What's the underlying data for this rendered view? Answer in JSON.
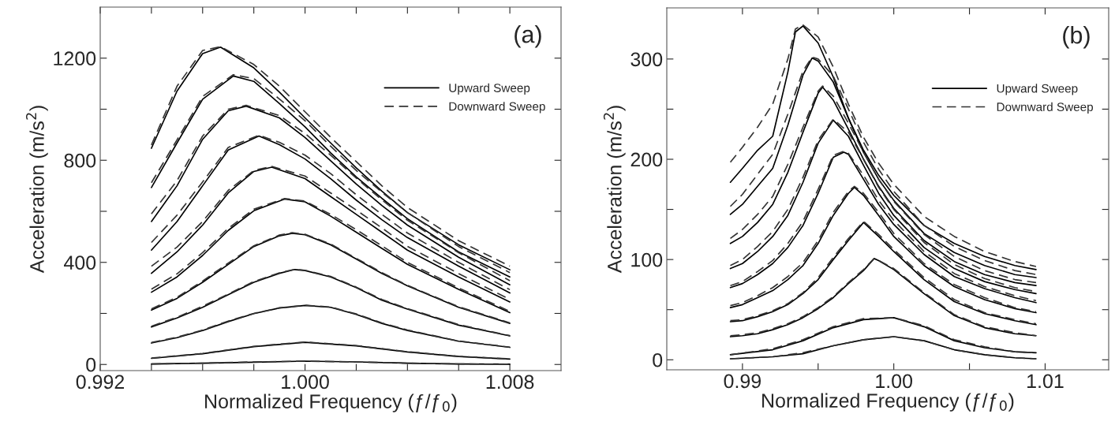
{
  "chart_data": [
    {
      "type": "line",
      "xlabel": "Normalized Frequency (ƒ/ƒ$_{0}$)",
      "ylabel": "Acceleration (m/s$^{2}$)",
      "annotations": [
        "(a)"
      ],
      "legend": "top right",
      "xlim": [
        0.992,
        1.01
      ],
      "ylim": [
        -24,
        1400
      ],
      "xticks": [
        0.992,
        {
          "value": 0.994,
          "label": null
        },
        {
          "value": 0.996,
          "label": null
        },
        {
          "value": 0.998,
          "label": null
        },
        {
          "value": 1.0,
          "label": "1.000"
        },
        {
          "value": 1.002,
          "label": null
        },
        {
          "value": 1.004,
          "label": null
        },
        {
          "value": 1.006,
          "label": null
        },
        1.008
      ],
      "yticks": [
        0,
        {
          "value": 200,
          "label": null
        },
        400,
        {
          "value": 600,
          "label": null
        },
        800,
        {
          "value": 1000,
          "label": null
        },
        1200
      ],
      "series": [
        {
          "name": "Upward Sweep",
          "color": "#000000",
          "line_style": "solid",
          "x": [
            0.994,
            0.995,
            0.996,
            0.9967,
            0.998,
            0.999,
            1.0,
            1.001,
            1.002,
            1.003,
            1.004,
            1.006,
            1.008
          ],
          "values": [
            847,
            1071,
            1218,
            1243,
            1162,
            1067,
            966,
            868,
            770,
            679,
            595,
            469,
            371
          ]
        },
        {
          "name": "Downward Sweep",
          "color": "#333333",
          "line_style": "dashed",
          "x": [
            0.994,
            0.995,
            0.996,
            0.9967,
            0.998,
            0.999,
            1.0,
            1.001,
            1.002,
            1.003,
            1.004,
            1.006,
            1.008
          ],
          "values": [
            860,
            1090,
            1230,
            1245,
            1175,
            1090,
            990,
            890,
            795,
            700,
            615,
            485,
            385
          ]
        },
        {
          "color": "#000000",
          "line_style": "solid",
          "x": [
            0.994,
            0.995,
            0.996,
            0.9972,
            0.998,
            0.999,
            1.0,
            1.001,
            1.002,
            1.003,
            1.004,
            1.006,
            1.008
          ],
          "values": [
            693,
            868,
            1039,
            1130,
            1109,
            1022,
            931,
            829,
            735,
            651,
            571,
            441,
            343
          ]
        },
        {
          "color": "#333333",
          "line_style": "dashed",
          "x": [
            0.994,
            0.995,
            0.996,
            0.9972,
            0.998,
            0.999,
            1.0,
            1.001,
            1.002,
            1.003,
            1.004,
            1.006,
            1.008
          ],
          "values": [
            712,
            880,
            1050,
            1135,
            1120,
            1040,
            955,
            855,
            760,
            675,
            595,
            462,
            360
          ]
        },
        {
          "color": "#000000",
          "line_style": "solid",
          "x": [
            0.994,
            0.995,
            0.996,
            0.997,
            0.9977,
            0.999,
            1.0,
            1.001,
            1.002,
            1.003,
            1.004,
            1.006,
            1.008
          ],
          "values": [
            560,
            700,
            882,
            994,
            1012,
            966,
            889,
            798,
            707,
            623,
            546,
            420,
            312
          ]
        },
        {
          "color": "#333333",
          "line_style": "dashed",
          "x": [
            0.994,
            0.995,
            0.996,
            0.997,
            0.9977,
            0.999,
            1.0,
            1.001,
            1.002,
            1.003,
            1.004,
            1.006,
            1.008
          ],
          "values": [
            590,
            720,
            895,
            1000,
            1015,
            975,
            905,
            820,
            730,
            645,
            565,
            438,
            328
          ]
        },
        {
          "color": "#000000",
          "line_style": "solid",
          "x": [
            0.994,
            0.995,
            0.996,
            0.997,
            0.9982,
            0.999,
            1.0,
            1.001,
            1.002,
            1.003,
            1.004,
            1.006,
            1.008
          ],
          "values": [
            448,
            560,
            700,
            840,
            895,
            861,
            805,
            728,
            644,
            567,
            497,
            385,
            280
          ]
        },
        {
          "color": "#333333",
          "line_style": "dashed",
          "x": [
            0.994,
            0.995,
            0.996,
            0.997,
            0.9982,
            0.999,
            1.0,
            1.001,
            1.002,
            1.003,
            1.004,
            1.006,
            1.008
          ],
          "values": [
            478,
            585,
            715,
            850,
            898,
            870,
            820,
            748,
            665,
            588,
            515,
            400,
            293
          ]
        },
        {
          "color": "#000000",
          "line_style": "solid",
          "x": [
            0.994,
            0.995,
            0.996,
            0.997,
            0.998,
            0.9987,
            1.0,
            1.001,
            1.002,
            1.003,
            1.004,
            1.006,
            1.008
          ],
          "values": [
            357,
            441,
            546,
            672,
            756,
            773,
            728,
            658,
            588,
            518,
            448,
            343,
            245
          ]
        },
        {
          "color": "#333333",
          "line_style": "dashed",
          "x": [
            0.994,
            0.995,
            0.996,
            0.997,
            0.998,
            0.9987,
            1.0,
            1.001,
            1.002,
            1.003,
            1.004,
            1.006,
            1.008
          ],
          "values": [
            385,
            460,
            560,
            682,
            760,
            776,
            738,
            672,
            605,
            535,
            463,
            356,
            255
          ]
        },
        {
          "color": "#000000",
          "line_style": "solid",
          "x": [
            0.994,
            0.995,
            0.996,
            0.997,
            0.998,
            0.9992,
            1.0,
            1.001,
            1.002,
            1.003,
            1.004,
            1.006,
            1.008
          ],
          "values": [
            283,
            343,
            427,
            525,
            602,
            648,
            637,
            581,
            518,
            455,
            392,
            294,
            203
          ]
        },
        {
          "color": "#333333",
          "line_style": "dashed",
          "x": [
            0.994,
            0.995,
            0.996,
            0.997,
            0.998,
            0.9992,
            1.0,
            1.001,
            1.002,
            1.003,
            1.004,
            1.006,
            1.008
          ],
          "values": [
            295,
            355,
            438,
            533,
            608,
            650,
            640,
            588,
            528,
            465,
            400,
            300,
            208
          ]
        },
        {
          "color": "#000000",
          "line_style": "solid",
          "x": [
            0.994,
            0.995,
            0.996,
            0.997,
            0.998,
            0.999,
            0.9995,
            1.0,
            1.001,
            1.002,
            1.003,
            1.004,
            1.006,
            1.008
          ],
          "values": [
            213,
            259,
            322,
            392,
            462,
            504,
            514,
            508,
            469,
            413,
            357,
            308,
            224,
            161
          ]
        },
        {
          "color": "#333333",
          "line_style": "dashed",
          "x": [
            0.994,
            0.995,
            0.996,
            0.997,
            0.998,
            0.999,
            0.9995,
            1.0,
            1.001,
            1.002,
            1.003,
            1.004,
            1.006,
            1.008
          ],
          "values": [
            218,
            263,
            327,
            397,
            465,
            507,
            516,
            510,
            472,
            416,
            360,
            310,
            226,
            163
          ]
        },
        {
          "color": "#000000",
          "line_style": "solid",
          "x": [
            0.994,
            0.995,
            0.996,
            0.997,
            0.998,
            0.999,
            0.9996,
            1.0,
            1.001,
            1.002,
            1.003,
            1.004,
            1.006,
            1.008
          ],
          "values": [
            147,
            182,
            224,
            273,
            322,
            357,
            372,
            368,
            343,
            301,
            252,
            217,
            154,
            112
          ]
        },
        {
          "color": "#333333",
          "line_style": "dashed",
          "x": [
            0.994,
            0.995,
            0.996,
            0.997,
            0.998,
            0.999,
            0.9996,
            1.0,
            1.001,
            1.002,
            1.003,
            1.004,
            1.006,
            1.008
          ],
          "values": [
            150,
            185,
            228,
            276,
            325,
            359,
            373,
            369,
            345,
            303,
            255,
            219,
            156,
            113
          ]
        },
        {
          "color": "#000000",
          "line_style": "solid",
          "x": [
            0.994,
            0.995,
            0.996,
            0.997,
            0.998,
            0.999,
            1.0,
            1.001,
            1.002,
            1.003,
            1.004,
            1.006,
            1.008
          ],
          "values": [
            84,
            105,
            133,
            168,
            199,
            221,
            231,
            224,
            196,
            161,
            133,
            91,
            67
          ]
        },
        {
          "color": "#333333",
          "line_style": "dashed",
          "x": [
            0.994,
            0.995,
            0.996,
            0.997,
            0.998,
            0.999,
            1.0,
            1.001,
            1.002,
            1.003,
            1.004,
            1.006,
            1.008
          ],
          "values": [
            86,
            107,
            135,
            170,
            200,
            222,
            232,
            225,
            198,
            163,
            135,
            92,
            68
          ]
        },
        {
          "color": "#000000",
          "line_style": "solid",
          "x": [
            0.994,
            0.996,
            0.998,
            1.0,
            1.002,
            1.004,
            1.006,
            1.008
          ],
          "values": [
            24,
            42,
            70,
            87,
            73,
            49,
            31,
            21
          ]
        },
        {
          "color": "#333333",
          "line_style": "dashed",
          "x": [
            0.994,
            0.996,
            0.998,
            1.0,
            1.002,
            1.004,
            1.006,
            1.008
          ],
          "values": [
            25,
            43,
            71,
            88,
            74,
            50,
            32,
            22
          ]
        },
        {
          "color": "#000000",
          "line_style": "solid",
          "x": [
            0.994,
            0.996,
            0.998,
            1.0,
            1.002,
            1.004,
            1.006,
            1.008
          ],
          "values": [
            2,
            5,
            9,
            13,
            10,
            5,
            2,
            1
          ]
        },
        {
          "color": "#333333",
          "line_style": "dashed",
          "x": [
            0.994,
            0.996,
            0.998,
            1.0,
            1.002,
            1.004,
            1.006,
            1.008
          ],
          "values": [
            2,
            5,
            10,
            13,
            10,
            5,
            2,
            1
          ]
        }
      ]
    },
    {
      "type": "line",
      "xlabel": "Normalized Frequency (ƒ/ƒ$_{0}$)",
      "ylabel": "Acceleration (m/s$^{2}$)",
      "annotations": [
        "(b)"
      ],
      "legend": "top right",
      "xlim": [
        0.985,
        1.0142
      ],
      "ylim": [
        -10,
        351
      ],
      "xticks": [
        0.99,
        {
          "value": 0.995,
          "label": null
        },
        {
          "value": 1.0,
          "label": "1.00"
        },
        {
          "value": 1.005,
          "label": null
        },
        1.01
      ],
      "yticks": [
        0,
        {
          "value": 50,
          "label": null
        },
        100,
        {
          "value": 150,
          "label": null
        },
        200,
        {
          "value": 250,
          "label": null
        },
        300
      ],
      "series": [
        {
          "name": "Upward Sweep",
          "color": "#000000",
          "line_style": "solid",
          "x": [
            0.9892,
            0.99,
            0.991,
            0.992,
            0.993,
            0.9935,
            0.994,
            0.995,
            0.996,
            0.997,
            0.998,
            0.999,
            1.0,
            1.002,
            1.004,
            1.006,
            1.008,
            1.0094
          ],
          "values": [
            177,
            191,
            209,
            223,
            287,
            327,
            333,
            316,
            282,
            241,
            209,
            184,
            164,
            134,
            116,
            103,
            94,
            90
          ]
        },
        {
          "name": "Downward Sweep",
          "color": "#333333",
          "line_style": "dashed",
          "x": [
            0.9892,
            0.99,
            0.991,
            0.992,
            0.993,
            0.9935,
            0.994,
            0.995,
            0.996,
            0.997,
            0.998,
            0.999,
            1.0,
            1.002,
            1.004,
            1.006,
            1.008,
            1.0094
          ],
          "values": [
            197,
            212,
            232,
            255,
            300,
            330,
            334,
            322,
            292,
            255,
            222,
            196,
            175,
            143,
            123,
            108,
            98,
            93
          ]
        },
        {
          "color": "#000000",
          "line_style": "solid",
          "x": [
            0.9892,
            0.99,
            0.991,
            0.992,
            0.993,
            0.994,
            0.9946,
            0.995,
            0.996,
            0.997,
            0.998,
            0.999,
            1.0,
            1.002,
            1.004,
            1.006,
            1.008,
            1.0094
          ],
          "values": [
            145,
            155,
            173,
            191,
            234,
            284,
            301,
            298,
            277,
            241,
            207,
            180,
            159,
            126,
            107,
            94,
            85,
            82
          ]
        },
        {
          "color": "#333333",
          "line_style": "dashed",
          "x": [
            0.9892,
            0.99,
            0.991,
            0.992,
            0.993,
            0.994,
            0.9946,
            0.995,
            0.996,
            0.997,
            0.998,
            0.999,
            1.0,
            1.002,
            1.004,
            1.006,
            1.008,
            1.0094
          ],
          "values": [
            153,
            165,
            185,
            205,
            245,
            288,
            302,
            300,
            283,
            250,
            217,
            190,
            168,
            134,
            113,
            99,
            89,
            85
          ]
        },
        {
          "color": "#000000",
          "line_style": "solid",
          "x": [
            0.9892,
            0.99,
            0.991,
            0.992,
            0.993,
            0.994,
            0.995,
            0.9953,
            0.996,
            0.997,
            0.998,
            0.999,
            1.0,
            1.002,
            1.004,
            1.006,
            1.008,
            1.0094
          ],
          "values": [
            116,
            123,
            137,
            155,
            187,
            227,
            266,
            272,
            259,
            230,
            200,
            173,
            151,
            119,
            98,
            85,
            77,
            74
          ]
        },
        {
          "color": "#333333",
          "line_style": "dashed",
          "x": [
            0.9892,
            0.99,
            0.991,
            0.992,
            0.993,
            0.994,
            0.995,
            0.9953,
            0.996,
            0.997,
            0.998,
            0.999,
            1.0,
            1.002,
            1.004,
            1.006,
            1.008,
            1.0094
          ],
          "values": [
            121,
            130,
            145,
            163,
            195,
            232,
            268,
            273,
            263,
            236,
            207,
            180,
            158,
            125,
            103,
            89,
            80,
            77
          ]
        },
        {
          "color": "#000000",
          "line_style": "solid",
          "x": [
            0.9892,
            0.99,
            0.991,
            0.992,
            0.993,
            0.994,
            0.995,
            0.996,
            0.997,
            0.998,
            0.999,
            1.0,
            1.002,
            1.004,
            1.006,
            1.008,
            1.0094
          ],
          "values": [
            91,
            96,
            108,
            123,
            144,
            177,
            216,
            239,
            223,
            194,
            166,
            144,
            112,
            91,
            78,
            70,
            66
          ]
        },
        {
          "color": "#333333",
          "line_style": "dashed",
          "x": [
            0.9892,
            0.99,
            0.991,
            0.992,
            0.993,
            0.994,
            0.995,
            0.996,
            0.997,
            0.998,
            0.999,
            1.0,
            1.002,
            1.004,
            1.006,
            1.008,
            1.0094
          ],
          "values": [
            94,
            100,
            113,
            128,
            150,
            182,
            219,
            240,
            227,
            200,
            172,
            150,
            117,
            95,
            81,
            72,
            68
          ]
        },
        {
          "color": "#000000",
          "line_style": "solid",
          "x": [
            0.9892,
            0.99,
            0.991,
            0.992,
            0.993,
            0.994,
            0.995,
            0.996,
            0.9967,
            0.997,
            0.998,
            0.999,
            1.0,
            1.002,
            1.004,
            1.006,
            1.008,
            1.0094
          ],
          "values": [
            72,
            76,
            85,
            96,
            112,
            134,
            166,
            202,
            207,
            205,
            180,
            155,
            135,
            105,
            83,
            71,
            62,
            57
          ]
        },
        {
          "color": "#333333",
          "line_style": "dashed",
          "x": [
            0.9892,
            0.99,
            0.991,
            0.992,
            0.993,
            0.994,
            0.995,
            0.996,
            0.9967,
            0.997,
            0.998,
            0.999,
            1.0,
            1.002,
            1.004,
            1.006,
            1.008,
            1.0094
          ],
          "values": [
            74,
            78,
            88,
            99,
            116,
            138,
            170,
            204,
            208,
            206,
            184,
            159,
            139,
            108,
            86,
            73,
            64,
            59
          ]
        },
        {
          "color": "#000000",
          "line_style": "solid",
          "x": [
            0.9892,
            0.99,
            0.991,
            0.992,
            0.993,
            0.994,
            0.995,
            0.996,
            0.997,
            0.9974,
            0.998,
            0.999,
            1.0,
            1.002,
            1.004,
            1.006,
            1.008,
            1.0094
          ],
          "values": [
            52,
            55,
            62,
            69,
            80,
            94,
            116,
            144,
            166,
            172,
            164,
            144,
            123,
            94,
            73,
            60,
            51,
            47
          ]
        },
        {
          "color": "#333333",
          "line_style": "dashed",
          "x": [
            0.9892,
            0.99,
            0.991,
            0.992,
            0.993,
            0.994,
            0.995,
            0.996,
            0.997,
            0.9974,
            0.998,
            0.999,
            1.0,
            1.002,
            1.004,
            1.006,
            1.008,
            1.0094
          ],
          "values": [
            54,
            57,
            64,
            72,
            83,
            97,
            119,
            147,
            168,
            173,
            166,
            147,
            126,
            96,
            75,
            62,
            52,
            48
          ]
        },
        {
          "color": "#000000",
          "line_style": "solid",
          "x": [
            0.9892,
            0.99,
            0.991,
            0.992,
            0.993,
            0.994,
            0.995,
            0.996,
            0.997,
            0.998,
            0.999,
            1.0,
            1.002,
            1.004,
            1.006,
            1.008,
            1.0094
          ],
          "values": [
            38,
            39,
            43,
            48,
            55,
            66,
            80,
            100,
            119,
            137,
            123,
            108,
            80,
            58,
            46,
            39,
            35
          ]
        },
        {
          "color": "#333333",
          "line_style": "dashed",
          "x": [
            0.9892,
            0.99,
            0.991,
            0.992,
            0.993,
            0.994,
            0.995,
            0.996,
            0.997,
            0.998,
            0.999,
            1.0,
            1.002,
            1.004,
            1.006,
            1.008,
            1.0094
          ],
          "values": [
            39,
            40,
            44,
            49,
            56,
            67,
            82,
            102,
            121,
            138,
            125,
            110,
            82,
            60,
            47,
            40,
            36
          ]
        },
        {
          "color": "#000000",
          "line_style": "solid",
          "x": [
            0.9892,
            0.99,
            0.991,
            0.992,
            0.993,
            0.994,
            0.995,
            0.996,
            0.997,
            0.998,
            0.9987,
            0.999,
            1.0,
            1.002,
            1.004,
            1.006,
            1.008,
            1.0094
          ],
          "values": [
            23,
            24,
            26,
            30,
            35,
            42,
            51,
            62,
            76,
            89,
            101,
            99,
            90,
            66,
            44,
            32,
            26,
            24
          ]
        },
        {
          "color": "#333333",
          "line_style": "dashed",
          "x": [
            0.9892,
            0.99,
            0.991,
            0.992,
            0.993,
            0.994,
            0.995,
            0.996,
            0.997,
            0.998,
            0.9987,
            0.999,
            1.0,
            1.002,
            1.004,
            1.006,
            1.008,
            1.0094
          ],
          "values": [
            24,
            25,
            27,
            31,
            36,
            43,
            52,
            63,
            77,
            90,
            101,
            99,
            91,
            67,
            45,
            33,
            27,
            24
          ]
        },
        {
          "color": "#000000",
          "line_style": "solid",
          "x": [
            0.9892,
            0.992,
            0.994,
            0.996,
            0.998,
            1.0,
            1.002,
            1.004,
            1.006,
            1.008,
            1.0094
          ],
          "values": [
            5,
            10,
            19,
            32,
            40,
            42,
            33,
            19,
            12,
            8,
            7
          ]
        },
        {
          "color": "#333333",
          "line_style": "dashed",
          "x": [
            0.9892,
            0.992,
            0.994,
            0.996,
            0.998,
            1.0,
            1.002,
            1.004,
            1.006,
            1.008,
            1.0094
          ],
          "values": [
            5,
            11,
            20,
            33,
            41,
            42,
            34,
            20,
            13,
            8,
            7
          ]
        },
        {
          "color": "#000000",
          "line_style": "solid",
          "x": [
            0.9892,
            0.992,
            0.994,
            0.996,
            0.998,
            1.0,
            1.002,
            1.004,
            1.006,
            1.008,
            1.0094
          ],
          "values": [
            1,
            3,
            6,
            14,
            20,
            23,
            19,
            10,
            5,
            2,
            1
          ]
        },
        {
          "color": "#333333",
          "line_style": "dashed",
          "x": [
            0.9892,
            0.992,
            0.994,
            0.996,
            0.998,
            1.0,
            1.002,
            1.004,
            1.006,
            1.008,
            1.0094
          ],
          "values": [
            1,
            3,
            7,
            14,
            20,
            23,
            19,
            10,
            5,
            2,
            1
          ]
        }
      ]
    }
  ]
}
